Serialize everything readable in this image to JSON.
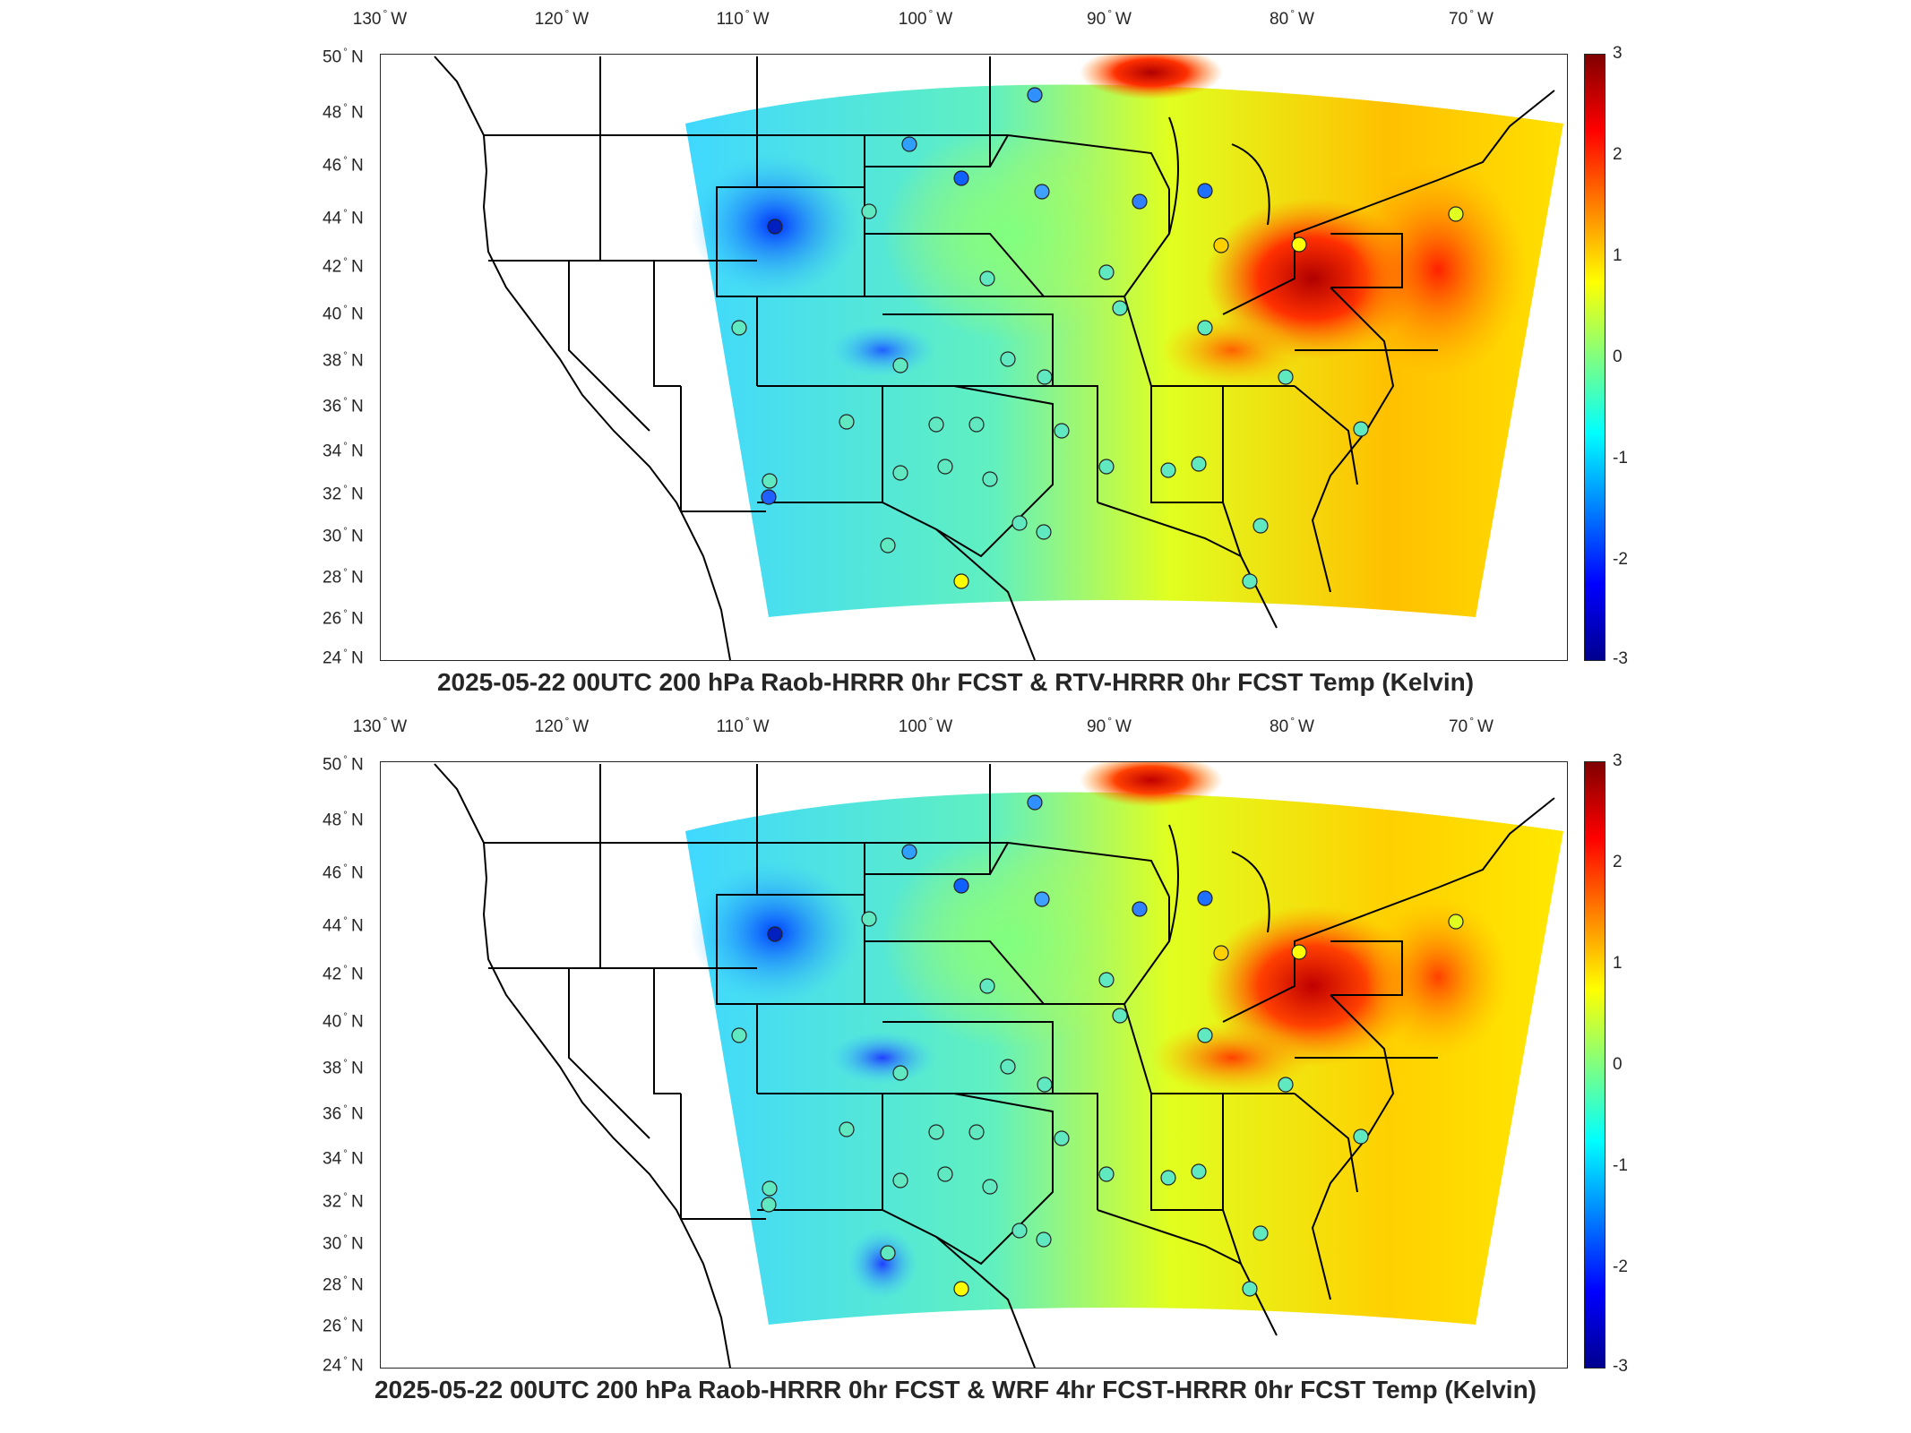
{
  "colors": {
    "cold": "#0000ff",
    "neutral": "#ffff00",
    "warm": "#ff0000",
    "frame": "#262626",
    "station_edge": "#222222"
  },
  "panels": [
    {
      "title": "2025-05-22 00UTC 200 hPa Raob-HRRR 0hr FCST & RTV-HRRR 0hr FCST Temp (Kelvin)",
      "lon_labels": [
        "130",
        "120",
        "110",
        "100",
        "90",
        "80",
        "70"
      ],
      "lon_suffix": "W",
      "lat_labels": [
        "50",
        "48",
        "46",
        "44",
        "42",
        "40",
        "38",
        "36",
        "34",
        "32",
        "30",
        "28",
        "26",
        "24"
      ],
      "lat_suffix": "N",
      "colorbar_ticks": [
        "3",
        "2",
        "1",
        "0",
        "-1",
        "-2",
        "-3"
      ],
      "colorbar_range": [
        -3,
        3
      ],
      "colormap": "jet"
    },
    {
      "title": "2025-05-22 00UTC 200 hPa Raob-HRRR 0hr FCST & WRF 4hr FCST-HRRR 0hr FCST Temp (Kelvin)",
      "lon_labels": [
        "130",
        "120",
        "110",
        "100",
        "90",
        "80",
        "70"
      ],
      "lon_suffix": "W",
      "lat_labels": [
        "50",
        "48",
        "46",
        "44",
        "42",
        "40",
        "38",
        "36",
        "34",
        "32",
        "30",
        "28",
        "26",
        "24"
      ],
      "lat_suffix": "N",
      "colorbar_ticks": [
        "3",
        "2",
        "1",
        "0",
        "-1",
        "-2",
        "-3"
      ],
      "colorbar_range": [
        -3,
        3
      ],
      "colormap": "jet"
    }
  ]
}
